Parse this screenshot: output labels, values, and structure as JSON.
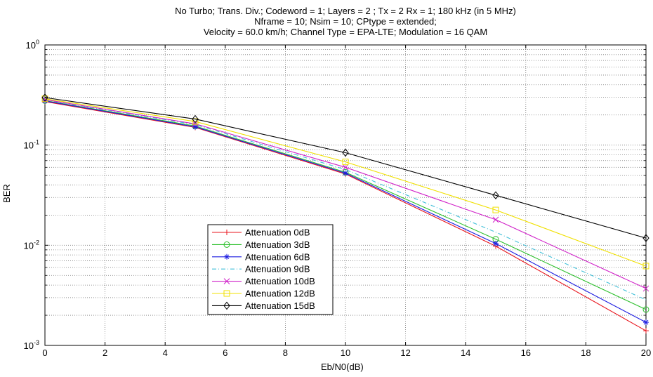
{
  "chart_data": {
    "type": "line",
    "title_lines": [
      "No Turbo;  Trans. Div.; Codeword = 1; Layers = 2 ; Tx = 2 Rx = 1;  180 kHz (in 5 MHz)",
      "Nframe = 10; Nsim = 10; CPtype = extended;",
      "Velocity = 60.0 km/h; Channel Type = EPA-LTE; Modulation = 16 QAM"
    ],
    "xlabel": "Eb/N0(dB)",
    "ylabel": "BER",
    "xlim": [
      0,
      20
    ],
    "ylim": [
      0.001,
      1
    ],
    "yscale": "log",
    "grid": true,
    "legend_position": "lower-left",
    "x_ticks": [
      "0",
      "2",
      "4",
      "6",
      "8",
      "10",
      "12",
      "14",
      "16",
      "18",
      "20"
    ],
    "y_ticks": [
      {
        "base": "10",
        "exp": "0"
      },
      {
        "base": "10",
        "exp": "-1"
      },
      {
        "base": "10",
        "exp": "-2"
      },
      {
        "base": "10",
        "exp": "-3"
      }
    ],
    "x": [
      0,
      5,
      10,
      15,
      20
    ],
    "series": [
      {
        "name": "Attenuation 0dB",
        "color": "#e8141c",
        "marker": "plus",
        "values": [
          0.272,
          0.15,
          0.0515,
          0.0098,
          0.0014
        ]
      },
      {
        "name": "Attenuation 3dB",
        "color": "#2ec02e",
        "marker": "circle",
        "values": [
          0.278,
          0.155,
          0.0535,
          0.0115,
          0.00228
        ]
      },
      {
        "name": "Attenuation 6dB",
        "color": "#1c1ce0",
        "marker": "star",
        "values": [
          0.276,
          0.152,
          0.0525,
          0.0104,
          0.0017
        ]
      },
      {
        "name": "Attenuation 9dB",
        "color": "#3fbfd8",
        "marker": "dashdot",
        "values": [
          0.283,
          0.16,
          0.057,
          0.0135,
          0.00285
        ]
      },
      {
        "name": "Attenuation 10dB",
        "color": "#d020c8",
        "marker": "x",
        "values": [
          0.285,
          0.163,
          0.06,
          0.018,
          0.0037
        ]
      },
      {
        "name": "Attenuation 12dB",
        "color": "#f0e000",
        "marker": "square",
        "values": [
          0.29,
          0.172,
          0.068,
          0.0225,
          0.0062
        ]
      },
      {
        "name": "Attenuation 15dB",
        "color": "#000000",
        "marker": "diamond",
        "values": [
          0.298,
          0.182,
          0.084,
          0.0315,
          0.0118
        ]
      }
    ]
  }
}
